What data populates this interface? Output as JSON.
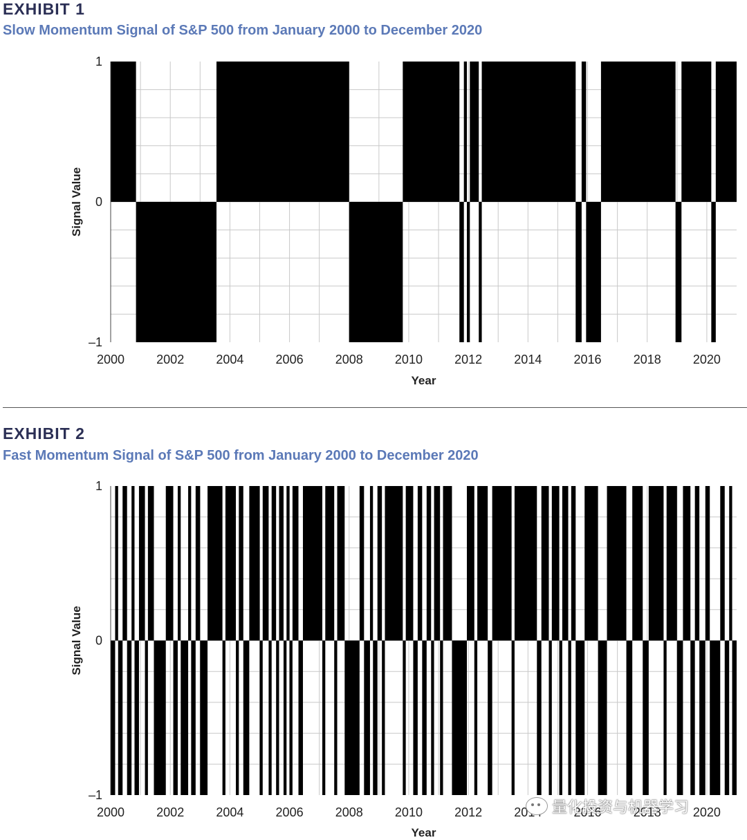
{
  "exhibit1": {
    "label": "EXHIBIT 1",
    "title": "Slow Momentum Signal of S&P 500 from January 2000 to December 2020"
  },
  "exhibit2": {
    "label": "EXHIBIT 2",
    "title": "Fast Momentum Signal of S&P 500 from January 2000 to December 2020"
  },
  "watermark": {
    "text": "量化投资与机器学习",
    "icon": "wechat-icon"
  },
  "chart_data": [
    {
      "type": "area",
      "title": "Slow Momentum Signal of S&P 500 from January 2000 to December 2020",
      "xlabel": "Year",
      "ylabel": "Signal Value",
      "xlim": [
        2000,
        2021
      ],
      "ylim": [
        -1,
        1
      ],
      "x_ticks": [
        "2000",
        "2002",
        "2004",
        "2006",
        "2008",
        "2010",
        "2012",
        "2014",
        "2016",
        "2018",
        "2020"
      ],
      "y_ticks": [
        "1",
        "0",
        "–1"
      ],
      "grid": true,
      "fill_color": "#000000",
      "segments": [
        {
          "start": 2000.0,
          "end": 2000.85,
          "value": 1
        },
        {
          "start": 2000.85,
          "end": 2003.55,
          "value": -1
        },
        {
          "start": 2003.55,
          "end": 2008.0,
          "value": 1
        },
        {
          "start": 2008.0,
          "end": 2009.8,
          "value": -1
        },
        {
          "start": 2009.8,
          "end": 2011.7,
          "value": 1
        },
        {
          "start": 2011.7,
          "end": 2011.85,
          "value": -1
        },
        {
          "start": 2011.85,
          "end": 2011.95,
          "value": 1
        },
        {
          "start": 2011.95,
          "end": 2012.05,
          "value": -1
        },
        {
          "start": 2012.05,
          "end": 2012.35,
          "value": 1
        },
        {
          "start": 2012.35,
          "end": 2012.45,
          "value": -1
        },
        {
          "start": 2012.45,
          "end": 2015.6,
          "value": 1
        },
        {
          "start": 2015.6,
          "end": 2015.8,
          "value": -1
        },
        {
          "start": 2015.8,
          "end": 2015.95,
          "value": 1
        },
        {
          "start": 2015.95,
          "end": 2016.45,
          "value": -1
        },
        {
          "start": 2016.45,
          "end": 2018.95,
          "value": 1
        },
        {
          "start": 2018.95,
          "end": 2019.15,
          "value": -1
        },
        {
          "start": 2019.15,
          "end": 2020.15,
          "value": 1
        },
        {
          "start": 2020.15,
          "end": 2020.3,
          "value": -1
        },
        {
          "start": 2020.3,
          "end": 2021.0,
          "value": 1
        }
      ]
    },
    {
      "type": "area",
      "title": "Fast Momentum Signal of S&P 500 from January 2000 to December 2020",
      "xlabel": "Year",
      "ylabel": "Signal Value",
      "xlim": [
        2000,
        2021
      ],
      "ylim": [
        -1,
        1
      ],
      "x_ticks": [
        "2000",
        "2002",
        "2004",
        "2006",
        "2008",
        "2010",
        "2012",
        "2014",
        "2016",
        "2018",
        "2020"
      ],
      "y_ticks": [
        "1",
        "0",
        "–1"
      ],
      "grid": true,
      "fill_color": "#000000",
      "segments": [
        {
          "start": 2000.0,
          "end": 2000.15,
          "value": -1
        },
        {
          "start": 2000.15,
          "end": 2000.25,
          "value": 1
        },
        {
          "start": 2000.25,
          "end": 2000.4,
          "value": -1
        },
        {
          "start": 2000.4,
          "end": 2000.55,
          "value": 1
        },
        {
          "start": 2000.55,
          "end": 2000.7,
          "value": -1
        },
        {
          "start": 2000.7,
          "end": 2000.8,
          "value": 1
        },
        {
          "start": 2000.8,
          "end": 2000.95,
          "value": -1
        },
        {
          "start": 2000.95,
          "end": 2001.15,
          "value": 1
        },
        {
          "start": 2001.15,
          "end": 2001.25,
          "value": -1
        },
        {
          "start": 2001.25,
          "end": 2001.45,
          "value": 1
        },
        {
          "start": 2001.45,
          "end": 2001.85,
          "value": -1
        },
        {
          "start": 2001.85,
          "end": 2002.1,
          "value": 1
        },
        {
          "start": 2002.1,
          "end": 2002.25,
          "value": -1
        },
        {
          "start": 2002.25,
          "end": 2002.35,
          "value": 1
        },
        {
          "start": 2002.35,
          "end": 2002.6,
          "value": -1
        },
        {
          "start": 2002.6,
          "end": 2002.7,
          "value": 1
        },
        {
          "start": 2002.7,
          "end": 2002.85,
          "value": -1
        },
        {
          "start": 2002.85,
          "end": 2003.0,
          "value": 1
        },
        {
          "start": 2003.0,
          "end": 2003.25,
          "value": -1
        },
        {
          "start": 2003.25,
          "end": 2003.75,
          "value": 1
        },
        {
          "start": 2003.75,
          "end": 2003.85,
          "value": -1
        },
        {
          "start": 2003.85,
          "end": 2004.2,
          "value": 1
        },
        {
          "start": 2004.2,
          "end": 2004.3,
          "value": -1
        },
        {
          "start": 2004.3,
          "end": 2004.45,
          "value": 1
        },
        {
          "start": 2004.45,
          "end": 2004.65,
          "value": -1
        },
        {
          "start": 2004.65,
          "end": 2005.0,
          "value": 1
        },
        {
          "start": 2005.0,
          "end": 2005.1,
          "value": -1
        },
        {
          "start": 2005.1,
          "end": 2005.3,
          "value": 1
        },
        {
          "start": 2005.3,
          "end": 2005.4,
          "value": -1
        },
        {
          "start": 2005.4,
          "end": 2005.55,
          "value": 1
        },
        {
          "start": 2005.55,
          "end": 2005.65,
          "value": -1
        },
        {
          "start": 2005.65,
          "end": 2005.8,
          "value": 1
        },
        {
          "start": 2005.8,
          "end": 2005.9,
          "value": -1
        },
        {
          "start": 2005.9,
          "end": 2006.0,
          "value": 1
        },
        {
          "start": 2006.0,
          "end": 2006.1,
          "value": -1
        },
        {
          "start": 2006.1,
          "end": 2006.3,
          "value": 1
        },
        {
          "start": 2006.3,
          "end": 2006.45,
          "value": -1
        },
        {
          "start": 2006.45,
          "end": 2007.1,
          "value": 1
        },
        {
          "start": 2007.1,
          "end": 2007.2,
          "value": -1
        },
        {
          "start": 2007.2,
          "end": 2007.5,
          "value": 1
        },
        {
          "start": 2007.5,
          "end": 2007.6,
          "value": -1
        },
        {
          "start": 2007.6,
          "end": 2007.85,
          "value": 1
        },
        {
          "start": 2007.85,
          "end": 2008.35,
          "value": -1
        },
        {
          "start": 2008.35,
          "end": 2008.5,
          "value": 1
        },
        {
          "start": 2008.5,
          "end": 2008.7,
          "value": -1
        },
        {
          "start": 2008.7,
          "end": 2008.8,
          "value": 1
        },
        {
          "start": 2008.8,
          "end": 2008.95,
          "value": -1
        },
        {
          "start": 2008.95,
          "end": 2009.1,
          "value": 1
        },
        {
          "start": 2009.1,
          "end": 2009.2,
          "value": -1
        },
        {
          "start": 2009.2,
          "end": 2009.8,
          "value": 1
        },
        {
          "start": 2009.8,
          "end": 2009.9,
          "value": -1
        },
        {
          "start": 2009.9,
          "end": 2010.15,
          "value": 1
        },
        {
          "start": 2010.15,
          "end": 2010.3,
          "value": -1
        },
        {
          "start": 2010.3,
          "end": 2010.45,
          "value": 1
        },
        {
          "start": 2010.45,
          "end": 2010.6,
          "value": -1
        },
        {
          "start": 2010.6,
          "end": 2010.75,
          "value": 1
        },
        {
          "start": 2010.75,
          "end": 2010.85,
          "value": -1
        },
        {
          "start": 2010.85,
          "end": 2011.05,
          "value": 1
        },
        {
          "start": 2011.05,
          "end": 2011.15,
          "value": -1
        },
        {
          "start": 2011.15,
          "end": 2011.45,
          "value": 1
        },
        {
          "start": 2011.45,
          "end": 2011.95,
          "value": -1
        },
        {
          "start": 2011.95,
          "end": 2012.2,
          "value": 1
        },
        {
          "start": 2012.2,
          "end": 2012.3,
          "value": -1
        },
        {
          "start": 2012.3,
          "end": 2012.65,
          "value": 1
        },
        {
          "start": 2012.65,
          "end": 2012.8,
          "value": -1
        },
        {
          "start": 2012.8,
          "end": 2013.45,
          "value": 1
        },
        {
          "start": 2013.45,
          "end": 2013.55,
          "value": -1
        },
        {
          "start": 2013.55,
          "end": 2014.3,
          "value": 1
        },
        {
          "start": 2014.3,
          "end": 2014.45,
          "value": -1
        },
        {
          "start": 2014.45,
          "end": 2014.7,
          "value": 1
        },
        {
          "start": 2014.7,
          "end": 2014.8,
          "value": -1
        },
        {
          "start": 2014.8,
          "end": 2015.05,
          "value": 1
        },
        {
          "start": 2015.05,
          "end": 2015.15,
          "value": -1
        },
        {
          "start": 2015.15,
          "end": 2015.35,
          "value": 1
        },
        {
          "start": 2015.35,
          "end": 2015.45,
          "value": -1
        },
        {
          "start": 2015.45,
          "end": 2015.6,
          "value": 1
        },
        {
          "start": 2015.6,
          "end": 2015.9,
          "value": -1
        },
        {
          "start": 2015.9,
          "end": 2016.35,
          "value": 1
        },
        {
          "start": 2016.35,
          "end": 2016.65,
          "value": -1
        },
        {
          "start": 2016.65,
          "end": 2017.3,
          "value": 1
        },
        {
          "start": 2017.3,
          "end": 2017.5,
          "value": -1
        },
        {
          "start": 2017.5,
          "end": 2017.85,
          "value": 1
        },
        {
          "start": 2017.85,
          "end": 2018.05,
          "value": -1
        },
        {
          "start": 2018.05,
          "end": 2018.55,
          "value": 1
        },
        {
          "start": 2018.55,
          "end": 2018.65,
          "value": -1
        },
        {
          "start": 2018.65,
          "end": 2019.0,
          "value": 1
        },
        {
          "start": 2019.0,
          "end": 2019.2,
          "value": -1
        },
        {
          "start": 2019.2,
          "end": 2019.45,
          "value": 1
        },
        {
          "start": 2019.45,
          "end": 2019.6,
          "value": -1
        },
        {
          "start": 2019.6,
          "end": 2019.75,
          "value": 1
        },
        {
          "start": 2019.75,
          "end": 2019.95,
          "value": -1
        },
        {
          "start": 2019.95,
          "end": 2020.1,
          "value": 1
        },
        {
          "start": 2020.1,
          "end": 2020.45,
          "value": -1
        },
        {
          "start": 2020.45,
          "end": 2020.6,
          "value": 1
        },
        {
          "start": 2020.6,
          "end": 2020.75,
          "value": -1
        },
        {
          "start": 2020.75,
          "end": 2020.85,
          "value": 1
        },
        {
          "start": 2020.85,
          "end": 2021.0,
          "value": -1
        }
      ]
    }
  ]
}
